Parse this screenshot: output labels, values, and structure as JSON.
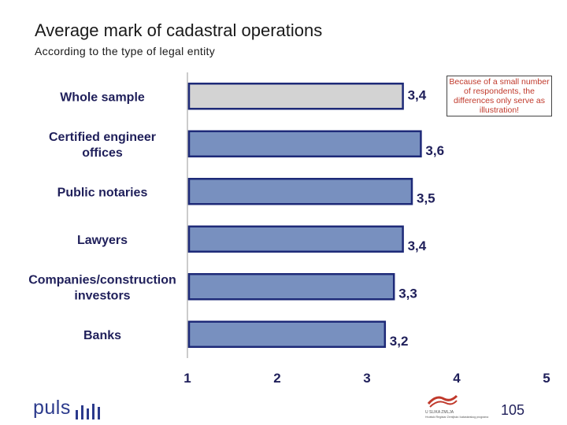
{
  "slide": {
    "title": "Average mark of cadastral operations",
    "subtitle": "According to the type of legal entity",
    "note": "Because of a small number of respondents, the differences only serve as illustration!",
    "page_number": "105",
    "logo_text": "puls",
    "emblem_name": "U SLIKA ZMLJA",
    "emblem_caption": "Hrvatski Registar Zemljista i katastarskog programa"
  },
  "chart_data": {
    "type": "bar",
    "orientation": "horizontal",
    "categories": [
      "Whole sample",
      "Certified engineer offices",
      "Public notaries",
      "Lawyers",
      "Companies/construction investors",
      "Banks"
    ],
    "category_lines": [
      [
        "Whole sample"
      ],
      [
        "Certified engineer",
        "offices"
      ],
      [
        "Public notaries"
      ],
      [
        "Lawyers"
      ],
      [
        "Companies/construction",
        "investors"
      ],
      [
        "Banks"
      ]
    ],
    "values": [
      3.4,
      3.6,
      3.5,
      3.4,
      3.3,
      3.2
    ],
    "value_labels": [
      "3,4",
      "3,6",
      "3,5",
      "3,4",
      "3,3",
      "3,2"
    ],
    "xlim": [
      1,
      5
    ],
    "x_ticks": [
      "1",
      "2",
      "3",
      "4",
      "5"
    ],
    "colors": {
      "highlight_bar": "#d3d3d3",
      "bar": "#7890bf",
      "bar_border": "#1e2a78",
      "axis": "#9a9a9a"
    }
  }
}
